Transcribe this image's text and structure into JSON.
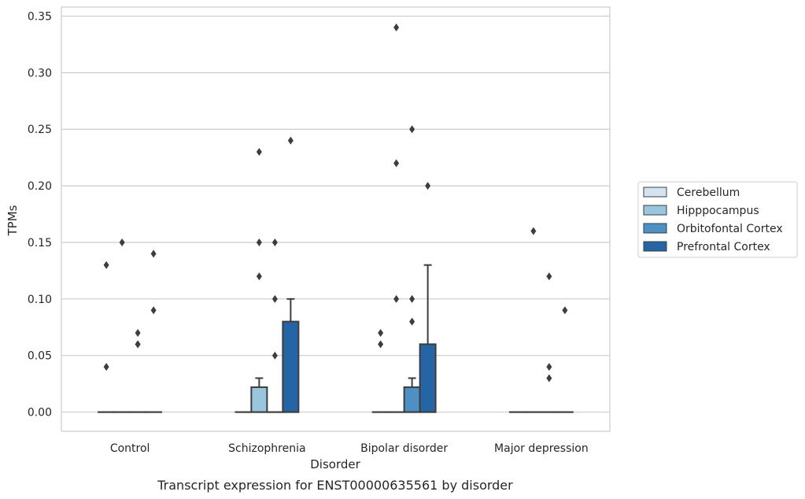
{
  "chart_data": {
    "type": "box",
    "title": "Transcript expression for ENST00000635561 by disorder",
    "xlabel": "Disorder",
    "ylabel": "TPMs",
    "ylim": [
      -0.017,
      0.358
    ],
    "yticks": [
      0.0,
      0.05,
      0.1,
      0.15,
      0.2,
      0.25,
      0.3,
      0.35
    ],
    "ytick_labels": [
      "0.00",
      "0.05",
      "0.10",
      "0.15",
      "0.20",
      "0.25",
      "0.30",
      "0.35"
    ],
    "grid": "horizontal",
    "legend_position": "right",
    "categories": [
      "Control",
      "Schizophrenia",
      "Bipolar disorder",
      "Major depression"
    ],
    "series": [
      {
        "name": "Cerebellum",
        "color": "#d3e3f2",
        "boxes": [
          {
            "q1": 0,
            "median": 0,
            "q3": 0,
            "whisker_low": 0,
            "whisker_high": 0,
            "outliers": [
              0.13,
              0.04
            ]
          },
          {
            "q1": 0,
            "median": 0,
            "q3": 0,
            "whisker_low": 0,
            "whisker_high": 0,
            "outliers": []
          },
          {
            "q1": 0,
            "median": 0,
            "q3": 0,
            "whisker_low": 0,
            "whisker_high": 0,
            "outliers": [
              0.07,
              0.06
            ]
          },
          {
            "q1": 0,
            "median": 0,
            "q3": 0,
            "whisker_low": 0,
            "whisker_high": 0,
            "outliers": []
          }
        ]
      },
      {
        "name": "Hipppocampus",
        "color": "#9ac5de",
        "boxes": [
          {
            "q1": 0,
            "median": 0,
            "q3": 0,
            "whisker_low": 0,
            "whisker_high": 0,
            "outliers": [
              0.15
            ]
          },
          {
            "q1": 0,
            "median": 0,
            "q3": 0.022,
            "whisker_low": 0,
            "whisker_high": 0.03,
            "outliers": [
              0.23,
              0.15,
              0.12
            ]
          },
          {
            "q1": 0,
            "median": 0,
            "q3": 0,
            "whisker_low": 0,
            "whisker_high": 0,
            "outliers": [
              0.34,
              0.22,
              0.1
            ]
          },
          {
            "q1": 0,
            "median": 0,
            "q3": 0,
            "whisker_low": 0,
            "whisker_high": 0,
            "outliers": [
              0.16
            ]
          }
        ]
      },
      {
        "name": "Orbitofontal Cortex",
        "color": "#4d90c4",
        "boxes": [
          {
            "q1": 0,
            "median": 0,
            "q3": 0,
            "whisker_low": 0,
            "whisker_high": 0,
            "outliers": [
              0.07,
              0.06,
              0.06
            ]
          },
          {
            "q1": 0,
            "median": 0,
            "q3": 0,
            "whisker_low": 0,
            "whisker_high": 0,
            "outliers": [
              0.15,
              0.1,
              0.05
            ]
          },
          {
            "q1": 0,
            "median": 0,
            "q3": 0.022,
            "whisker_low": 0,
            "whisker_high": 0.03,
            "outliers": [
              0.25,
              0.1,
              0.08
            ]
          },
          {
            "q1": 0,
            "median": 0,
            "q3": 0,
            "whisker_low": 0,
            "whisker_high": 0,
            "outliers": [
              0.12,
              0.04,
              0.03
            ]
          }
        ]
      },
      {
        "name": "Prefrontal Cortex",
        "color": "#2565a6",
        "boxes": [
          {
            "q1": 0,
            "median": 0,
            "q3": 0,
            "whisker_low": 0,
            "whisker_high": 0,
            "outliers": [
              0.14,
              0.09
            ]
          },
          {
            "q1": 0,
            "median": 0,
            "q3": 0.08,
            "whisker_low": 0,
            "whisker_high": 0.1,
            "outliers": [
              0.24
            ]
          },
          {
            "q1": 0,
            "median": 0,
            "q3": 0.06,
            "whisker_low": 0,
            "whisker_high": 0.13,
            "outliers": [
              0.2
            ]
          },
          {
            "q1": 0,
            "median": 0,
            "q3": 0,
            "whisker_low": 0,
            "whisker_high": 0,
            "outliers": [
              0.09
            ]
          }
        ]
      }
    ]
  }
}
